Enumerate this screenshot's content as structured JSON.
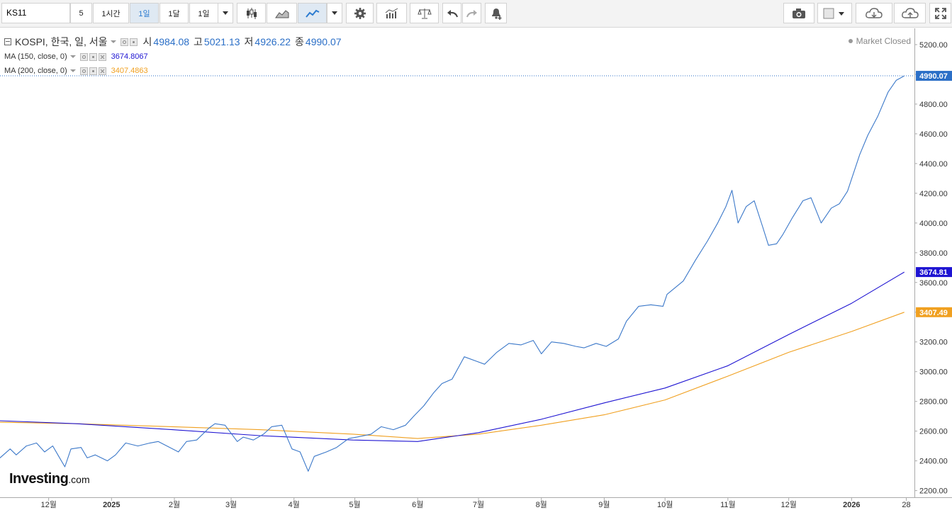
{
  "toolbar": {
    "symbol_value": "KS11",
    "interval_5": "5",
    "interval_1h": "1시간",
    "interval_1d": "1일",
    "interval_1mo": "1달",
    "range_1d": "1일"
  },
  "legend": {
    "instrument": "KOSPI, 한국, 일, 서울",
    "open_label": "시",
    "open": "4984.08",
    "high_label": "고",
    "high": "5021.13",
    "low_label": "저",
    "low": "4926.22",
    "close_label": "종",
    "close": "4990.07",
    "ma150_label": "MA (150, close, 0)",
    "ma150_value": "3674.8067",
    "ma200_label": "MA (200, close, 0)",
    "ma200_value": "3407.4863"
  },
  "status": {
    "market": "Market Closed"
  },
  "branding": {
    "logo": "Investing",
    "logo_suffix": ".com"
  },
  "colors": {
    "price": "#3b78c9",
    "ma150": "#1e14d2",
    "ma200": "#f0a020",
    "close_badge": "#2b6fc7",
    "ma150_badge": "#1e14d2",
    "ma200_badge": "#f0a020"
  },
  "chart_data": {
    "type": "line",
    "y_ticks": [
      "5200.00",
      "5000.00",
      "4800.00",
      "4600.00",
      "4400.00",
      "4200.00",
      "4000.00",
      "3800.00",
      "3600.00",
      "3400.00",
      "3200.00",
      "3000.00",
      "2800.00",
      "2600.00",
      "2400.00",
      "2200.00"
    ],
    "x_ticks": [
      {
        "label": "12월",
        "date": "2024-12-01"
      },
      {
        "label": "2025",
        "date": "2025-01-01"
      },
      {
        "label": "2월",
        "date": "2025-02-01"
      },
      {
        "label": "3월",
        "date": "2025-03-01"
      },
      {
        "label": "4월",
        "date": "2025-04-01"
      },
      {
        "label": "5월",
        "date": "2025-05-01"
      },
      {
        "label": "6월",
        "date": "2025-06-01"
      },
      {
        "label": "7월",
        "date": "2025-07-01"
      },
      {
        "label": "8월",
        "date": "2025-08-01"
      },
      {
        "label": "9월",
        "date": "2025-09-01"
      },
      {
        "label": "10월",
        "date": "2025-10-01"
      },
      {
        "label": "11월",
        "date": "2025-11-01"
      },
      {
        "label": "12월",
        "date": "2025-12-01"
      },
      {
        "label": "2026",
        "date": "2026-01-01"
      },
      {
        "label": "28",
        "date": "2026-01-28"
      }
    ],
    "ylim": [
      2160,
      5300
    ],
    "xlim": [
      "2024-11-07",
      "2026-02-01"
    ],
    "price_labels": {
      "close": "4990.07",
      "ma150": "3674.81",
      "ma200": "3407.49"
    },
    "series": [
      {
        "role": "price",
        "points": [
          [
            "2024-11-07",
            2420
          ],
          [
            "2024-11-12",
            2480
          ],
          [
            "2024-11-15",
            2440
          ],
          [
            "2024-11-20",
            2500
          ],
          [
            "2024-11-25",
            2520
          ],
          [
            "2024-11-29",
            2460
          ],
          [
            "2024-12-03",
            2500
          ],
          [
            "2024-12-06",
            2430
          ],
          [
            "2024-12-09",
            2360
          ],
          [
            "2024-12-12",
            2480
          ],
          [
            "2024-12-17",
            2490
          ],
          [
            "2024-12-20",
            2420
          ],
          [
            "2024-12-24",
            2440
          ],
          [
            "2024-12-30",
            2400
          ],
          [
            "2025-01-03",
            2440
          ],
          [
            "2025-01-08",
            2520
          ],
          [
            "2025-01-14",
            2500
          ],
          [
            "2025-01-20",
            2520
          ],
          [
            "2025-01-24",
            2530
          ],
          [
            "2025-02-03",
            2460
          ],
          [
            "2025-02-07",
            2530
          ],
          [
            "2025-02-12",
            2540
          ],
          [
            "2025-02-18",
            2620
          ],
          [
            "2025-02-21",
            2650
          ],
          [
            "2025-02-26",
            2640
          ],
          [
            "2025-03-04",
            2530
          ],
          [
            "2025-03-07",
            2560
          ],
          [
            "2025-03-12",
            2540
          ],
          [
            "2025-03-17",
            2580
          ],
          [
            "2025-03-21",
            2630
          ],
          [
            "2025-03-26",
            2640
          ],
          [
            "2025-03-31",
            2480
          ],
          [
            "2025-04-04",
            2460
          ],
          [
            "2025-04-08",
            2330
          ],
          [
            "2025-04-11",
            2430
          ],
          [
            "2025-04-17",
            2460
          ],
          [
            "2025-04-22",
            2490
          ],
          [
            "2025-04-28",
            2550
          ],
          [
            "2025-05-02",
            2560
          ],
          [
            "2025-05-09",
            2580
          ],
          [
            "2025-05-14",
            2630
          ],
          [
            "2025-05-20",
            2610
          ],
          [
            "2025-05-26",
            2640
          ],
          [
            "2025-05-30",
            2700
          ],
          [
            "2025-06-04",
            2770
          ],
          [
            "2025-06-09",
            2860
          ],
          [
            "2025-06-13",
            2920
          ],
          [
            "2025-06-18",
            2950
          ],
          [
            "2025-06-24",
            3100
          ],
          [
            "2025-06-30",
            3070
          ],
          [
            "2025-07-04",
            3050
          ],
          [
            "2025-07-10",
            3130
          ],
          [
            "2025-07-16",
            3190
          ],
          [
            "2025-07-22",
            3180
          ],
          [
            "2025-07-28",
            3210
          ],
          [
            "2025-08-01",
            3120
          ],
          [
            "2025-08-06",
            3200
          ],
          [
            "2025-08-12",
            3190
          ],
          [
            "2025-08-18",
            3170
          ],
          [
            "2025-08-22",
            3160
          ],
          [
            "2025-08-28",
            3190
          ],
          [
            "2025-09-02",
            3170
          ],
          [
            "2025-09-08",
            3220
          ],
          [
            "2025-09-12",
            3340
          ],
          [
            "2025-09-18",
            3440
          ],
          [
            "2025-09-24",
            3450
          ],
          [
            "2025-09-30",
            3440
          ],
          [
            "2025-10-02",
            3520
          ],
          [
            "2025-10-10",
            3610
          ],
          [
            "2025-10-16",
            3750
          ],
          [
            "2025-10-22",
            3880
          ],
          [
            "2025-10-27",
            4000
          ],
          [
            "2025-10-31",
            4110
          ],
          [
            "2025-11-03",
            4220
          ],
          [
            "2025-11-06",
            4000
          ],
          [
            "2025-11-10",
            4110
          ],
          [
            "2025-11-14",
            4150
          ],
          [
            "2025-11-18",
            3980
          ],
          [
            "2025-11-21",
            3850
          ],
          [
            "2025-11-25",
            3860
          ],
          [
            "2025-11-28",
            3920
          ],
          [
            "2025-12-03",
            4040
          ],
          [
            "2025-12-08",
            4150
          ],
          [
            "2025-12-12",
            4170
          ],
          [
            "2025-12-17",
            4000
          ],
          [
            "2025-12-22",
            4100
          ],
          [
            "2025-12-26",
            4130
          ],
          [
            "2025-12-30",
            4214
          ],
          [
            "2026-01-05",
            4460
          ],
          [
            "2026-01-09",
            4590
          ],
          [
            "2026-01-14",
            4720
          ],
          [
            "2026-01-19",
            4880
          ],
          [
            "2026-01-23",
            4960
          ],
          [
            "2026-01-27",
            4990
          ]
        ]
      },
      {
        "role": "ma150",
        "points": [
          [
            "2024-11-07",
            2670
          ],
          [
            "2024-12-15",
            2650
          ],
          [
            "2025-01-31",
            2610
          ],
          [
            "2025-03-15",
            2570
          ],
          [
            "2025-04-30",
            2540
          ],
          [
            "2025-06-01",
            2530
          ],
          [
            "2025-07-01",
            2590
          ],
          [
            "2025-08-01",
            2680
          ],
          [
            "2025-09-01",
            2790
          ],
          [
            "2025-10-01",
            2890
          ],
          [
            "2025-11-01",
            3040
          ],
          [
            "2025-12-01",
            3250
          ],
          [
            "2026-01-01",
            3460
          ],
          [
            "2026-01-27",
            3670
          ]
        ]
      },
      {
        "role": "ma200",
        "points": [
          [
            "2024-11-07",
            2660
          ],
          [
            "2024-12-15",
            2650
          ],
          [
            "2025-01-31",
            2630
          ],
          [
            "2025-03-15",
            2610
          ],
          [
            "2025-04-30",
            2580
          ],
          [
            "2025-06-01",
            2550
          ],
          [
            "2025-07-01",
            2580
          ],
          [
            "2025-08-01",
            2640
          ],
          [
            "2025-09-01",
            2710
          ],
          [
            "2025-10-01",
            2810
          ],
          [
            "2025-11-01",
            2970
          ],
          [
            "2025-12-01",
            3130
          ],
          [
            "2026-01-01",
            3270
          ],
          [
            "2026-01-27",
            3400
          ]
        ]
      }
    ]
  }
}
